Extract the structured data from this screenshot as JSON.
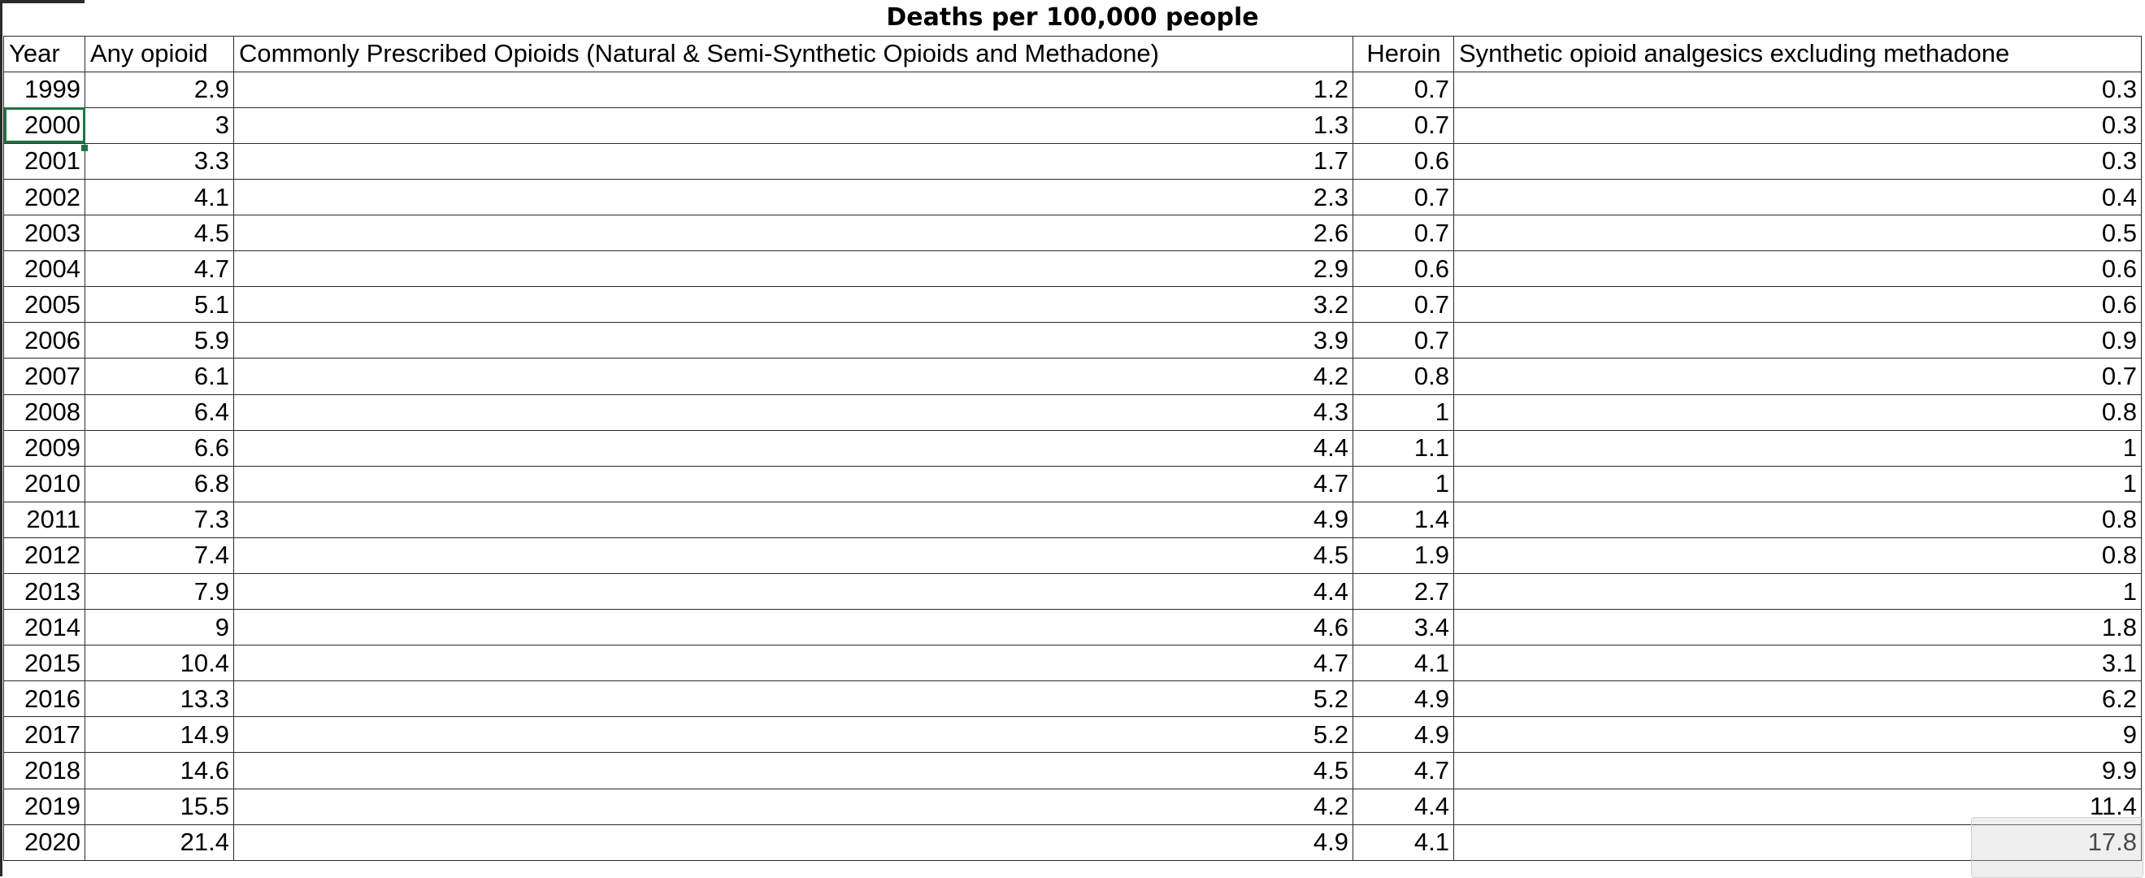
{
  "sheet": {
    "title": "Deaths per 100,000 people",
    "headers": {
      "year": "Year",
      "any": "Any opioid",
      "prescribed": "Commonly Prescribed Opioids (Natural & Semi-Synthetic Opioids and Methadone)",
      "heroin": "Heroin",
      "synthetic": "Synthetic opioid analgesics excluding methadone"
    },
    "rows": [
      {
        "year": "1999",
        "any": "2.9",
        "prescribed": "1.2",
        "heroin": "0.7",
        "synthetic": "0.3"
      },
      {
        "year": "2000",
        "any": "3",
        "prescribed": "1.3",
        "heroin": "0.7",
        "synthetic": "0.3"
      },
      {
        "year": "2001",
        "any": "3.3",
        "prescribed": "1.7",
        "heroin": "0.6",
        "synthetic": "0.3"
      },
      {
        "year": "2002",
        "any": "4.1",
        "prescribed": "2.3",
        "heroin": "0.7",
        "synthetic": "0.4"
      },
      {
        "year": "2003",
        "any": "4.5",
        "prescribed": "2.6",
        "heroin": "0.7",
        "synthetic": "0.5"
      },
      {
        "year": "2004",
        "any": "4.7",
        "prescribed": "2.9",
        "heroin": "0.6",
        "synthetic": "0.6"
      },
      {
        "year": "2005",
        "any": "5.1",
        "prescribed": "3.2",
        "heroin": "0.7",
        "synthetic": "0.6"
      },
      {
        "year": "2006",
        "any": "5.9",
        "prescribed": "3.9",
        "heroin": "0.7",
        "synthetic": "0.9"
      },
      {
        "year": "2007",
        "any": "6.1",
        "prescribed": "4.2",
        "heroin": "0.8",
        "synthetic": "0.7"
      },
      {
        "year": "2008",
        "any": "6.4",
        "prescribed": "4.3",
        "heroin": "1",
        "synthetic": "0.8"
      },
      {
        "year": "2009",
        "any": "6.6",
        "prescribed": "4.4",
        "heroin": "1.1",
        "synthetic": "1"
      },
      {
        "year": "2010",
        "any": "6.8",
        "prescribed": "4.7",
        "heroin": "1",
        "synthetic": "1"
      },
      {
        "year": "2011",
        "any": "7.3",
        "prescribed": "4.9",
        "heroin": "1.4",
        "synthetic": "0.8"
      },
      {
        "year": "2012",
        "any": "7.4",
        "prescribed": "4.5",
        "heroin": "1.9",
        "synthetic": "0.8"
      },
      {
        "year": "2013",
        "any": "7.9",
        "prescribed": "4.4",
        "heroin": "2.7",
        "synthetic": "1"
      },
      {
        "year": "2014",
        "any": "9",
        "prescribed": "4.6",
        "heroin": "3.4",
        "synthetic": "1.8"
      },
      {
        "year": "2015",
        "any": "10.4",
        "prescribed": "4.7",
        "heroin": "4.1",
        "synthetic": "3.1"
      },
      {
        "year": "2016",
        "any": "13.3",
        "prescribed": "5.2",
        "heroin": "4.9",
        "synthetic": "6.2"
      },
      {
        "year": "2017",
        "any": "14.9",
        "prescribed": "5.2",
        "heroin": "4.9",
        "synthetic": "9"
      },
      {
        "year": "2018",
        "any": "14.6",
        "prescribed": "4.5",
        "heroin": "4.7",
        "synthetic": "9.9"
      },
      {
        "year": "2019",
        "any": "15.5",
        "prescribed": "4.2",
        "heroin": "4.4",
        "synthetic": "11.4"
      },
      {
        "year": "2020",
        "any": "21.4",
        "prescribed": "4.9",
        "heroin": "4.1",
        "synthetic": "17.8"
      }
    ],
    "selected_cell": "2000",
    "colors": {
      "selection": "#217346",
      "gridline": "#2b2b2b"
    }
  }
}
